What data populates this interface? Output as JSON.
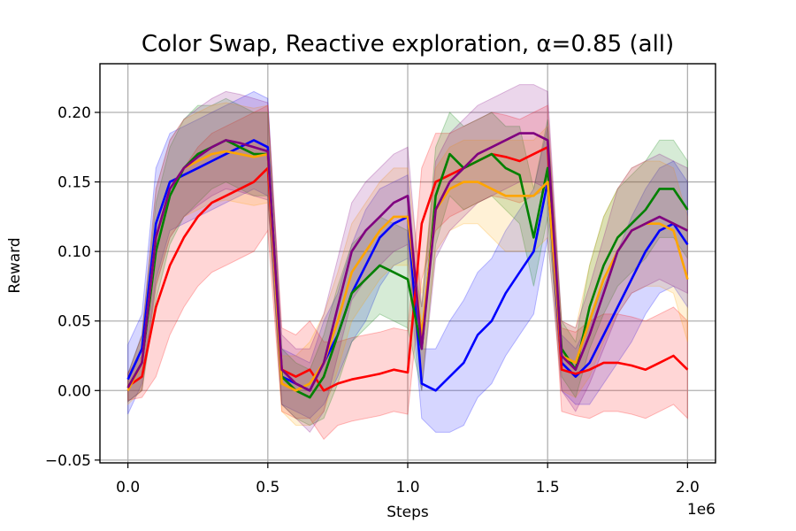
{
  "chart_data": {
    "type": "line",
    "title": "Color Swap, Reactive exploration, α=0.85 (all)",
    "xlabel": "Steps",
    "ylabel": "Reward",
    "x_offset_label": "1e6",
    "xlim": [
      -0.1,
      2.1
    ],
    "ylim": [
      -0.052,
      0.235
    ],
    "xticks": [
      0.0,
      0.5,
      1.0,
      1.5,
      2.0
    ],
    "xtick_labels": [
      "0.0",
      "0.5",
      "1.0",
      "1.5",
      "2.0"
    ],
    "yticks": [
      -0.05,
      0.0,
      0.05,
      0.1,
      0.15,
      0.2
    ],
    "ytick_labels": [
      "−0.05",
      "0.00",
      "0.05",
      "0.10",
      "0.15",
      "0.20"
    ],
    "grid": true,
    "legend": "none",
    "x": [
      0.0,
      0.05,
      0.1,
      0.15,
      0.2,
      0.25,
      0.3,
      0.35,
      0.4,
      0.45,
      0.5,
      0.55,
      0.6,
      0.65,
      0.7,
      0.75,
      0.8,
      0.85,
      0.9,
      0.95,
      1.0,
      1.05,
      1.1,
      1.15,
      1.2,
      1.25,
      1.3,
      1.35,
      1.4,
      1.45,
      1.5,
      1.55,
      1.6,
      1.65,
      1.7,
      1.75,
      1.8,
      1.85,
      1.9,
      1.95,
      2.0
    ],
    "series": [
      {
        "color": "#0000ff",
        "values": [
          0.008,
          0.03,
          0.12,
          0.15,
          0.155,
          0.16,
          0.165,
          0.17,
          0.175,
          0.18,
          0.175,
          0.01,
          0.005,
          0.0,
          0.02,
          0.04,
          0.07,
          0.09,
          0.11,
          0.12,
          0.125,
          0.005,
          0.0,
          0.01,
          0.02,
          0.04,
          0.05,
          0.07,
          0.085,
          0.1,
          0.15,
          0.02,
          0.01,
          0.02,
          0.04,
          0.06,
          0.08,
          0.1,
          0.115,
          0.12,
          0.105
        ],
        "band": [
          0.025,
          0.025,
          0.04,
          0.035,
          0.035,
          0.035,
          0.035,
          0.035,
          0.035,
          0.035,
          0.035,
          0.02,
          0.02,
          0.02,
          0.03,
          0.03,
          0.035,
          0.04,
          0.035,
          0.03,
          0.03,
          0.025,
          0.03,
          0.04,
          0.045,
          0.045,
          0.045,
          0.045,
          0.045,
          0.045,
          0.04,
          0.02,
          0.02,
          0.03,
          0.035,
          0.04,
          0.045,
          0.045,
          0.045,
          0.045,
          0.045
        ]
      },
      {
        "color": "#ff0000",
        "values": [
          0.003,
          0.01,
          0.06,
          0.09,
          0.11,
          0.125,
          0.135,
          0.14,
          0.145,
          0.15,
          0.16,
          0.015,
          0.01,
          0.015,
          0.0,
          0.005,
          0.008,
          0.01,
          0.012,
          0.015,
          0.013,
          0.12,
          0.15,
          0.155,
          0.16,
          0.165,
          0.17,
          0.168,
          0.165,
          0.17,
          0.175,
          0.015,
          0.012,
          0.015,
          0.02,
          0.02,
          0.018,
          0.015,
          0.02,
          0.025,
          0.015
        ],
        "band": [
          0.01,
          0.015,
          0.05,
          0.05,
          0.05,
          0.05,
          0.05,
          0.05,
          0.05,
          0.05,
          0.045,
          0.03,
          0.03,
          0.035,
          0.035,
          0.03,
          0.03,
          0.03,
          0.03,
          0.03,
          0.03,
          0.04,
          0.035,
          0.03,
          0.03,
          0.03,
          0.03,
          0.03,
          0.03,
          0.03,
          0.03,
          0.03,
          0.03,
          0.035,
          0.035,
          0.035,
          0.035,
          0.035,
          0.035,
          0.035,
          0.035
        ]
      },
      {
        "color": "#008000",
        "values": [
          0.002,
          0.02,
          0.1,
          0.14,
          0.16,
          0.17,
          0.175,
          0.18,
          0.175,
          0.17,
          0.17,
          0.01,
          0.0,
          -0.005,
          0.01,
          0.04,
          0.07,
          0.08,
          0.09,
          0.085,
          0.08,
          0.03,
          0.14,
          0.17,
          0.16,
          0.165,
          0.17,
          0.16,
          0.155,
          0.11,
          0.16,
          0.03,
          0.015,
          0.06,
          0.09,
          0.11,
          0.12,
          0.13,
          0.145,
          0.145,
          0.13
        ],
        "band": [
          0.01,
          0.02,
          0.035,
          0.035,
          0.035,
          0.035,
          0.03,
          0.03,
          0.03,
          0.03,
          0.03,
          0.02,
          0.02,
          0.02,
          0.03,
          0.035,
          0.035,
          0.035,
          0.035,
          0.035,
          0.035,
          0.03,
          0.035,
          0.03,
          0.03,
          0.03,
          0.03,
          0.03,
          0.035,
          0.035,
          0.035,
          0.02,
          0.02,
          0.03,
          0.035,
          0.035,
          0.035,
          0.035,
          0.035,
          0.035,
          0.035
        ]
      },
      {
        "color": "#ffa500",
        "values": [
          0.0,
          0.02,
          0.11,
          0.145,
          0.16,
          0.165,
          0.17,
          0.172,
          0.17,
          0.168,
          0.17,
          0.005,
          0.0,
          0.005,
          0.02,
          0.05,
          0.085,
          0.1,
          0.115,
          0.125,
          0.125,
          0.04,
          0.13,
          0.145,
          0.15,
          0.15,
          0.145,
          0.14,
          0.14,
          0.14,
          0.15,
          0.025,
          0.02,
          0.05,
          0.08,
          0.1,
          0.115,
          0.12,
          0.12,
          0.115,
          0.08
        ],
        "band": [
          0.01,
          0.02,
          0.035,
          0.035,
          0.035,
          0.035,
          0.035,
          0.035,
          0.035,
          0.035,
          0.035,
          0.02,
          0.025,
          0.03,
          0.035,
          0.035,
          0.035,
          0.035,
          0.035,
          0.035,
          0.035,
          0.03,
          0.03,
          0.03,
          0.03,
          0.03,
          0.035,
          0.04,
          0.04,
          0.04,
          0.04,
          0.025,
          0.025,
          0.04,
          0.045,
          0.045,
          0.045,
          0.045,
          0.045,
          0.045,
          0.045
        ]
      },
      {
        "color": "#800080",
        "values": [
          0.002,
          0.02,
          0.11,
          0.145,
          0.16,
          0.168,
          0.175,
          0.18,
          0.178,
          0.175,
          0.172,
          0.015,
          0.005,
          0.0,
          0.02,
          0.06,
          0.1,
          0.115,
          0.125,
          0.135,
          0.14,
          0.03,
          0.13,
          0.15,
          0.16,
          0.17,
          0.175,
          0.18,
          0.185,
          0.185,
          0.18,
          0.025,
          0.015,
          0.04,
          0.07,
          0.1,
          0.115,
          0.12,
          0.125,
          0.12,
          0.115
        ],
        "band": [
          0.01,
          0.02,
          0.035,
          0.035,
          0.035,
          0.035,
          0.035,
          0.035,
          0.035,
          0.035,
          0.035,
          0.025,
          0.025,
          0.03,
          0.035,
          0.035,
          0.035,
          0.035,
          0.035,
          0.035,
          0.035,
          0.03,
          0.035,
          0.035,
          0.035,
          0.035,
          0.035,
          0.035,
          0.035,
          0.035,
          0.035,
          0.025,
          0.03,
          0.035,
          0.04,
          0.045,
          0.045,
          0.045,
          0.045,
          0.045,
          0.045
        ]
      }
    ]
  }
}
